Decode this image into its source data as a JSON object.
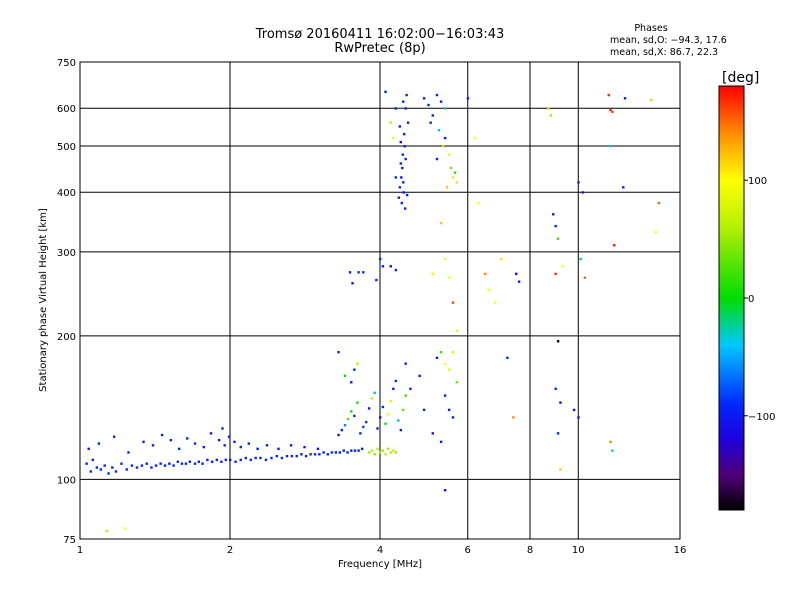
{
  "chart_data": {
    "type": "scatter",
    "title": "Tromsø 20160411 16:02:00−16:03:43",
    "subtitle": "RwPretec (8p)",
    "phase_box": {
      "heading": "Phases",
      "line1": "mean, sd,O: −94.3, 17.6",
      "line2": "mean, sd,X:  86.7, 22.3"
    },
    "xlabel": "Frequency [MHz]",
    "ylabel": "Stationary phase Virtual Height [km]",
    "x_scale": "log",
    "y_scale": "log",
    "xlim": [
      1,
      16
    ],
    "ylim": [
      75,
      750
    ],
    "x_ticks": [
      1,
      2,
      4,
      6,
      8,
      10,
      16
    ],
    "x_tick_labels": [
      "1",
      "2",
      "4",
      "6",
      "8",
      "10",
      "16"
    ],
    "y_ticks": [
      75,
      100,
      200,
      300,
      400,
      500,
      600,
      750
    ],
    "y_tick_labels": [
      "75",
      "100",
      "200",
      "300",
      "400",
      "500",
      "600",
      "750"
    ],
    "grid": true,
    "colorbar": {
      "label": "[deg]",
      "range": [
        -180,
        180
      ],
      "ticks": [
        100,
        0,
        -100
      ],
      "tick_labels": [
        "100",
        "0",
        "−100"
      ]
    },
    "points": [
      [
        1.03,
        108,
        -95
      ],
      [
        1.05,
        104,
        -95
      ],
      [
        1.06,
        110,
        -98
      ],
      [
        1.08,
        106,
        -92
      ],
      [
        1.1,
        105,
        -96
      ],
      [
        1.12,
        107,
        -90
      ],
      [
        1.14,
        103,
        -95
      ],
      [
        1.16,
        106,
        -94
      ],
      [
        1.18,
        104,
        -97
      ],
      [
        1.21,
        108,
        -93
      ],
      [
        1.24,
        105,
        -95
      ],
      [
        1.27,
        107,
        -92
      ],
      [
        1.3,
        106,
        -96
      ],
      [
        1.33,
        107,
        -94
      ],
      [
        1.36,
        108,
        -95
      ],
      [
        1.39,
        106,
        -93
      ],
      [
        1.42,
        107,
        -96
      ],
      [
        1.45,
        108,
        -94
      ],
      [
        1.48,
        107,
        -92
      ],
      [
        1.51,
        108,
        -95
      ],
      [
        1.54,
        107,
        -97
      ],
      [
        1.57,
        109,
        -94
      ],
      [
        1.6,
        108,
        -95
      ],
      [
        1.63,
        108,
        -93
      ],
      [
        1.66,
        109,
        -96
      ],
      [
        1.7,
        108,
        -94
      ],
      [
        1.73,
        109,
        -95
      ],
      [
        1.76,
        108,
        -92
      ],
      [
        1.8,
        110,
        -95
      ],
      [
        1.84,
        109,
        -94
      ],
      [
        1.88,
        110,
        -96
      ],
      [
        1.92,
        109,
        -93
      ],
      [
        1.96,
        110,
        -95
      ],
      [
        2.0,
        110,
        -94
      ],
      [
        2.05,
        109,
        -96
      ],
      [
        2.1,
        110,
        -95
      ],
      [
        2.15,
        111,
        -93
      ],
      [
        2.2,
        110,
        -94
      ],
      [
        2.25,
        111,
        -96
      ],
      [
        2.3,
        111,
        -95
      ],
      [
        2.36,
        110,
        -94
      ],
      [
        2.42,
        111,
        -92
      ],
      [
        2.48,
        112,
        -95
      ],
      [
        2.54,
        111,
        -94
      ],
      [
        2.6,
        112,
        -96
      ],
      [
        2.66,
        112,
        -95
      ],
      [
        2.72,
        112,
        -93
      ],
      [
        2.78,
        113,
        -94
      ],
      [
        2.84,
        112,
        -95
      ],
      [
        2.9,
        113,
        -96
      ],
      [
        2.96,
        113,
        -94
      ],
      [
        3.02,
        113,
        -95
      ],
      [
        3.08,
        114,
        -93
      ],
      [
        3.14,
        113,
        -94
      ],
      [
        3.2,
        114,
        -96
      ],
      [
        3.26,
        114,
        -95
      ],
      [
        3.32,
        114,
        -94
      ],
      [
        3.38,
        115,
        -93
      ],
      [
        3.44,
        114,
        -95
      ],
      [
        3.5,
        115,
        -94
      ],
      [
        3.56,
        115,
        -96
      ],
      [
        3.62,
        115,
        -95
      ],
      [
        3.68,
        116,
        -94
      ],
      [
        1.04,
        116,
        -100
      ],
      [
        1.09,
        119,
        -98
      ],
      [
        1.17,
        123,
        -97
      ],
      [
        1.25,
        114,
        -96
      ],
      [
        1.34,
        120,
        -100
      ],
      [
        1.4,
        118,
        -98
      ],
      [
        1.46,
        124,
        -95
      ],
      [
        1.52,
        121,
        -97
      ],
      [
        1.58,
        116,
        -99
      ],
      [
        1.64,
        122,
        -98
      ],
      [
        1.7,
        119,
        -96
      ],
      [
        1.77,
        117,
        -97
      ],
      [
        1.83,
        125,
        -99
      ],
      [
        1.9,
        121,
        -100
      ],
      [
        1.95,
        118,
        -97
      ],
      [
        1.99,
        123,
        -98
      ],
      [
        2.04,
        120,
        -96
      ],
      [
        2.1,
        117,
        -99
      ],
      [
        2.18,
        119,
        -97
      ],
      [
        2.27,
        116,
        -98
      ],
      [
        2.37,
        118,
        -100
      ],
      [
        2.5,
        116,
        -97
      ],
      [
        2.65,
        118,
        -96
      ],
      [
        2.82,
        117,
        -98
      ],
      [
        3.0,
        116,
        -99
      ],
      [
        1.93,
        128,
        -95
      ],
      [
        3.8,
        114,
        55
      ],
      [
        3.85,
        115,
        60
      ],
      [
        3.9,
        113,
        50
      ],
      [
        3.95,
        116,
        62
      ],
      [
        4.0,
        114,
        58
      ],
      [
        4.05,
        115,
        52
      ],
      [
        4.1,
        113,
        60
      ],
      [
        4.15,
        116,
        55
      ],
      [
        4.2,
        114,
        57
      ],
      [
        4.25,
        115,
        63
      ],
      [
        4.3,
        114,
        54
      ],
      [
        3.3,
        124,
        -110
      ],
      [
        3.35,
        127,
        -100
      ],
      [
        3.4,
        130,
        -60
      ],
      [
        3.45,
        134,
        30
      ],
      [
        3.5,
        139,
        -5
      ],
      [
        3.55,
        136,
        -90
      ],
      [
        3.6,
        145,
        10
      ],
      [
        3.65,
        125,
        -95
      ],
      [
        3.7,
        129,
        -80
      ],
      [
        3.75,
        132,
        -85
      ],
      [
        3.8,
        141,
        -100
      ],
      [
        3.85,
        148,
        70
      ],
      [
        3.9,
        152,
        -20
      ],
      [
        3.95,
        128,
        -95
      ],
      [
        4.0,
        135,
        -110
      ],
      [
        4.05,
        142,
        -90
      ],
      [
        4.1,
        131,
        -5
      ],
      [
        4.15,
        137,
        100
      ],
      [
        4.2,
        146,
        80
      ],
      [
        4.25,
        155,
        -100
      ],
      [
        4.3,
        161,
        -95
      ],
      [
        4.35,
        133,
        -30
      ],
      [
        4.4,
        127,
        -100
      ],
      [
        4.45,
        140,
        30
      ],
      [
        4.5,
        150,
        20
      ],
      [
        3.5,
        160,
        -100
      ],
      [
        3.55,
        170,
        -95
      ],
      [
        3.4,
        165,
        -5
      ],
      [
        3.6,
        175,
        60
      ],
      [
        3.3,
        185,
        -100
      ],
      [
        3.48,
        272,
        -100
      ],
      [
        3.62,
        272,
        -90
      ],
      [
        3.7,
        272,
        -95
      ],
      [
        3.52,
        258,
        -100
      ],
      [
        3.93,
        262,
        -100
      ],
      [
        4.0,
        290,
        -95
      ],
      [
        4.05,
        280,
        -100
      ],
      [
        4.2,
        280,
        -110
      ],
      [
        4.3,
        275,
        -95
      ],
      [
        4.4,
        460,
        -100
      ],
      [
        4.42,
        380,
        -95
      ],
      [
        4.45,
        420,
        -90
      ],
      [
        4.48,
        500,
        -100
      ],
      [
        4.5,
        600,
        -95
      ],
      [
        4.52,
        640,
        -100
      ],
      [
        4.38,
        550,
        -100
      ],
      [
        4.4,
        510,
        -105
      ],
      [
        4.43,
        450,
        -95
      ],
      [
        4.46,
        400,
        -100
      ],
      [
        4.49,
        370,
        -95
      ],
      [
        4.41,
        430,
        -100
      ],
      [
        4.44,
        480,
        -90
      ],
      [
        4.47,
        530,
        -100
      ],
      [
        4.5,
        470,
        -95
      ],
      [
        4.36,
        390,
        -100
      ],
      [
        4.38,
        410,
        -95
      ],
      [
        4.53,
        395,
        -100
      ],
      [
        4.55,
        560,
        -95
      ],
      [
        4.45,
        620,
        -100
      ],
      [
        4.2,
        560,
        70
      ],
      [
        4.25,
        520,
        95
      ],
      [
        4.3,
        600,
        -100
      ],
      [
        4.3,
        430,
        -95
      ],
      [
        4.1,
        650,
        -100
      ],
      [
        4.9,
        630,
        -100
      ],
      [
        5.0,
        610,
        -95
      ],
      [
        5.1,
        580,
        -100
      ],
      [
        5.2,
        640,
        -95
      ],
      [
        5.3,
        620,
        -100
      ],
      [
        5.4,
        600,
        -20
      ],
      [
        5.05,
        560,
        -100
      ],
      [
        5.25,
        540,
        -30
      ],
      [
        5.35,
        500,
        60
      ],
      [
        5.5,
        480,
        95
      ],
      [
        5.55,
        450,
        40
      ],
      [
        5.6,
        430,
        110
      ],
      [
        5.65,
        440,
        20
      ],
      [
        5.7,
        420,
        80
      ],
      [
        5.45,
        410,
        120
      ],
      [
        5.2,
        470,
        -95
      ],
      [
        5.4,
        520,
        -100
      ],
      [
        5.3,
        345,
        120
      ],
      [
        5.4,
        290,
        100
      ],
      [
        5.5,
        265,
        100
      ],
      [
        5.6,
        235,
        160
      ],
      [
        5.7,
        205,
        90
      ],
      [
        5.1,
        270,
        105
      ],
      [
        5.2,
        180,
        -100
      ],
      [
        5.3,
        185,
        20
      ],
      [
        5.4,
        175,
        100
      ],
      [
        5.5,
        170,
        90
      ],
      [
        5.6,
        185,
        110
      ],
      [
        5.7,
        160,
        40
      ],
      [
        5.4,
        150,
        -100
      ],
      [
        5.5,
        140,
        -95
      ],
      [
        5.6,
        135,
        -100
      ],
      [
        5.1,
        125,
        -110
      ],
      [
        5.3,
        120,
        -100
      ],
      [
        5.4,
        95,
        -110
      ],
      [
        4.9,
        140,
        -100
      ],
      [
        4.8,
        165,
        -100
      ],
      [
        4.6,
        155,
        -95
      ],
      [
        4.5,
        175,
        -100
      ],
      [
        6.0,
        630,
        -100
      ],
      [
        6.2,
        520,
        100
      ],
      [
        6.3,
        380,
        100
      ],
      [
        6.5,
        270,
        140
      ],
      [
        6.6,
        250,
        100
      ],
      [
        6.8,
        235,
        100
      ],
      [
        7.0,
        290,
        110
      ],
      [
        7.2,
        180,
        -100
      ],
      [
        7.4,
        135,
        140
      ],
      [
        7.5,
        270,
        -110
      ],
      [
        7.6,
        260,
        -100
      ],
      [
        8.7,
        600,
        115
      ],
      [
        8.8,
        580,
        120
      ],
      [
        8.9,
        360,
        -100
      ],
      [
        9.0,
        340,
        -95
      ],
      [
        9.1,
        320,
        20
      ],
      [
        9.0,
        270,
        170
      ],
      [
        9.1,
        195,
        -180
      ],
      [
        9.0,
        155,
        -100
      ],
      [
        9.2,
        145,
        -110
      ],
      [
        9.1,
        125,
        -90
      ],
      [
        9.2,
        105,
        120
      ],
      [
        9.3,
        280,
        100
      ],
      [
        10.0,
        420,
        -100
      ],
      [
        10.2,
        400,
        -95
      ],
      [
        10.1,
        290,
        -20
      ],
      [
        10.3,
        265,
        150
      ],
      [
        10.0,
        135,
        -100
      ],
      [
        9.8,
        140,
        -100
      ],
      [
        11.5,
        640,
        170
      ],
      [
        11.6,
        595,
        170
      ],
      [
        11.7,
        590,
        160
      ],
      [
        11.6,
        500,
        -30
      ],
      [
        11.8,
        310,
        175
      ],
      [
        11.6,
        120,
        140
      ],
      [
        11.7,
        115,
        -20
      ],
      [
        12.4,
        630,
        -100
      ],
      [
        12.3,
        410,
        -100
      ],
      [
        14.0,
        625,
        120
      ],
      [
        14.5,
        380,
        150
      ],
      [
        14.3,
        330,
        100
      ],
      [
        1.13,
        78,
        60
      ],
      [
        1.23,
        79,
        100
      ]
    ]
  }
}
